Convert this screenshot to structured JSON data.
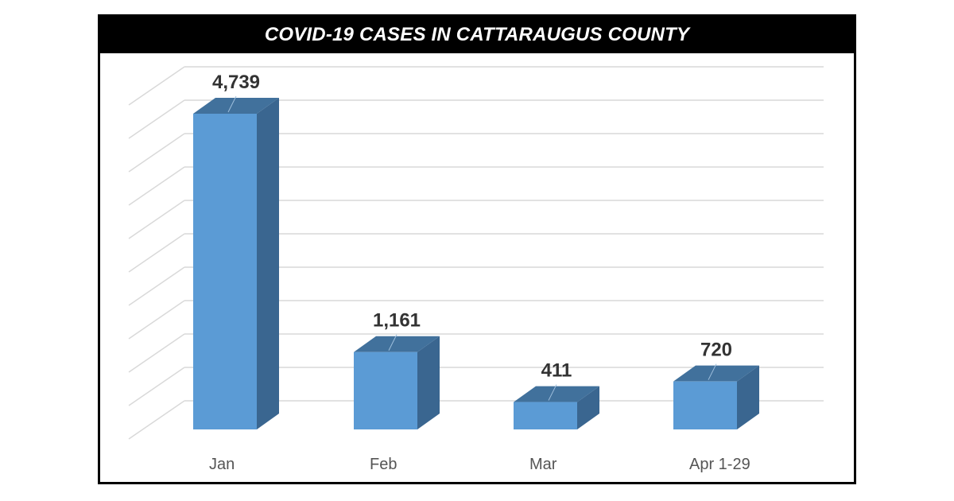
{
  "chart_data": {
    "type": "bar",
    "style": "3d-column",
    "title": "COVID-19 CASES IN CATTARAUGUS COUNTY",
    "xlabel": "",
    "ylabel": "",
    "categories": [
      "Jan",
      "Feb",
      "Mar",
      "Apr 1-29"
    ],
    "values": [
      4739,
      1161,
      411,
      720
    ],
    "value_labels": [
      "4,739",
      "1,161",
      "411",
      "720"
    ],
    "ylim": [
      0,
      5000
    ],
    "grid": true,
    "gridline_count": 11,
    "legend": "none",
    "y_axis_tick_labels_shown": false
  },
  "header": {
    "title": "COVID-19 CASES IN CATTARAUGUS COUNTY"
  },
  "colors": {
    "bar_front": "#5b9bd5",
    "bar_top": "#41719c",
    "bar_side": "#3a6690",
    "gridline": "#d9d9d9",
    "title_bg": "#000000",
    "title_text": "#ffffff",
    "value_text": "#333333",
    "category_text": "#555555"
  },
  "bars": [
    {
      "category": "Jan",
      "label": "4,739"
    },
    {
      "category": "Feb",
      "label": "1,161"
    },
    {
      "category": "Mar",
      "label": "411"
    },
    {
      "category": "Apr 1-29",
      "label": "720"
    }
  ]
}
